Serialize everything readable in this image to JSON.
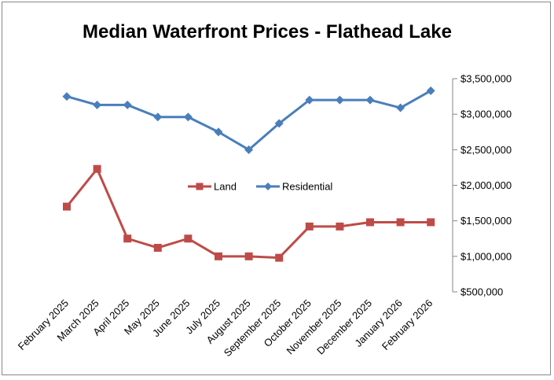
{
  "chart_data": {
    "type": "line",
    "title": "Median Waterfront Prices - Flathead Lake",
    "xlabel": "",
    "ylabel": "",
    "categories": [
      "February 2025",
      "March 2025",
      "April 2025",
      "May 2025",
      "June 2025",
      "July 2025",
      "August 2025",
      "September 2025",
      "October 2025",
      "November 2025",
      "December 2025",
      "January 2026",
      "February 2026"
    ],
    "ylim": [
      500000,
      3500000
    ],
    "yticks": [
      500000,
      1000000,
      1500000,
      2000000,
      2500000,
      3000000,
      3500000
    ],
    "ytick_labels": [
      "$500,000",
      "$1,000,000",
      "$1,500,000",
      "$2,000,000",
      "$2,500,000",
      "$3,000,000",
      "$3,500,000"
    ],
    "grid": false,
    "legend_position": "center",
    "series": [
      {
        "name": "Land",
        "color": "#be4b48",
        "marker": "square",
        "values": [
          1700000,
          2230000,
          1250000,
          1120000,
          1250000,
          1000000,
          1000000,
          980000,
          1420000,
          1420000,
          1480000,
          1480000,
          1480000
        ]
      },
      {
        "name": "Residential",
        "color": "#4a7ebb",
        "marker": "diamond",
        "values": [
          3250000,
          3130000,
          3130000,
          2960000,
          2960000,
          2750000,
          2500000,
          2870000,
          3200000,
          3200000,
          3200000,
          3090000,
          3330000
        ]
      }
    ]
  }
}
